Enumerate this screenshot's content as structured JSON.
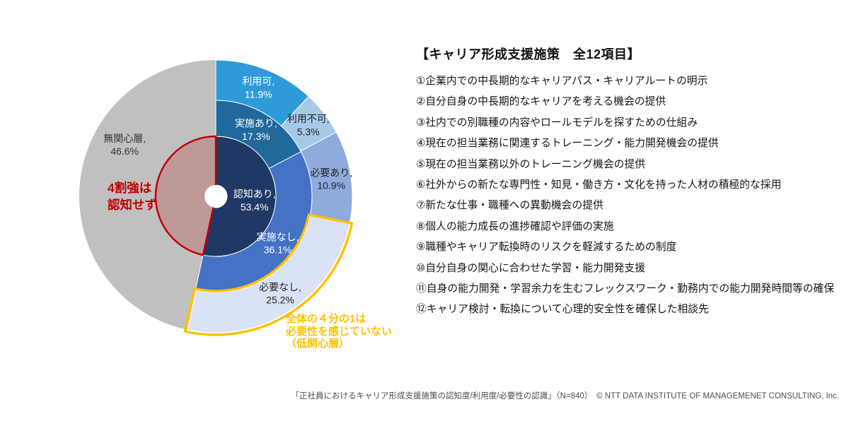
{
  "chart_data": {
    "type": "sunburst",
    "unit": "%",
    "total": 100,
    "start_angle_deg": 0,
    "direction": "clockwise",
    "uninterested_slice": {
      "label": "無関心層",
      "value": 46.6,
      "color": "#C0C0C0",
      "text_color": "#333333"
    },
    "rings": [
      {
        "id": "recognition",
        "segments": [
          {
            "label": "認知あり",
            "value": 53.4,
            "color": "#1F3864",
            "text_color": "#FFFFFF"
          }
        ]
      },
      {
        "id": "implementation",
        "segments": [
          {
            "label": "実施あり",
            "value": 17.3,
            "color": "#21689B",
            "text_color": "#FFFFFF"
          },
          {
            "label": "実施なし",
            "value": 36.1,
            "color": "#4472C4",
            "text_color": "#FFFFFF"
          }
        ]
      },
      {
        "id": "usage-necessity",
        "segments": [
          {
            "label": "利用可",
            "value": 11.9,
            "color": "#2E9BD8",
            "text_color": "#FFFFFF"
          },
          {
            "label": "利用不可",
            "value": 5.3,
            "color": "#A6C9E8",
            "text_color": "#222222"
          },
          {
            "label": "必要あり",
            "value": 10.9,
            "color": "#8FAADC",
            "text_color": "#222222"
          },
          {
            "label": "必要なし",
            "value": 25.2,
            "color": "#DAE3F5",
            "text_color": "#222222"
          }
        ]
      }
    ],
    "highlights": [
      {
        "id": "not-recognized",
        "target": "無関心層（内側）",
        "stroke": "#C00000",
        "fill_opacity": 0.2
      },
      {
        "id": "low-interest",
        "target": "必要なし",
        "stroke": "#FFC000"
      }
    ],
    "annotations": [
      {
        "id": "not-recognized-note",
        "text": "4割強は\n認知せず",
        "color": "#C00000"
      },
      {
        "id": "low-interest-note",
        "text": "全体の４分の1は\n必要性を感じていない\n（低関心層）",
        "color": "#FFC000"
      }
    ]
  },
  "panel": {
    "title": "【キャリア形成支援施策　全12項目】",
    "items": [
      "①企業内での中長期的なキャリアパス・キャリアルートの明示",
      "②自分自身の中長期的なキャリアを考える機会の提供",
      "③社内での別職種の内容やロールモデルを探すための仕組み",
      "④現在の担当業務に関連するトレーニング・能力開発機会の提供",
      "⑤現在の担当業務以外のトレーニング機会の提供",
      "⑥社外からの新たな専門性・知見・働き方・文化を持った人材の積極的な採用",
      "⑦新たな仕事・職種への異動機会の提供",
      "⑧個人の能力成長の進捗確認や評価の実施",
      "⑨職種やキャリア転換時のリスクを軽減するための制度",
      "⑩自分自身の関心に合わせた学習・能力開発支援",
      "⑪自身の能力開発・学習余力を生むフレックスワーク・勤務内での能力開発時間等の確保",
      "⑫キャリア検討・転換について心理的安全性を確保した相談先"
    ]
  },
  "footer": {
    "text": "「正社員におけるキャリア形成支援施策の認知度/利用度/必要性の認識」（N=840）　© NTT DATA INSTITUTE OF MANAGEMENET CONSULTING, Inc."
  }
}
